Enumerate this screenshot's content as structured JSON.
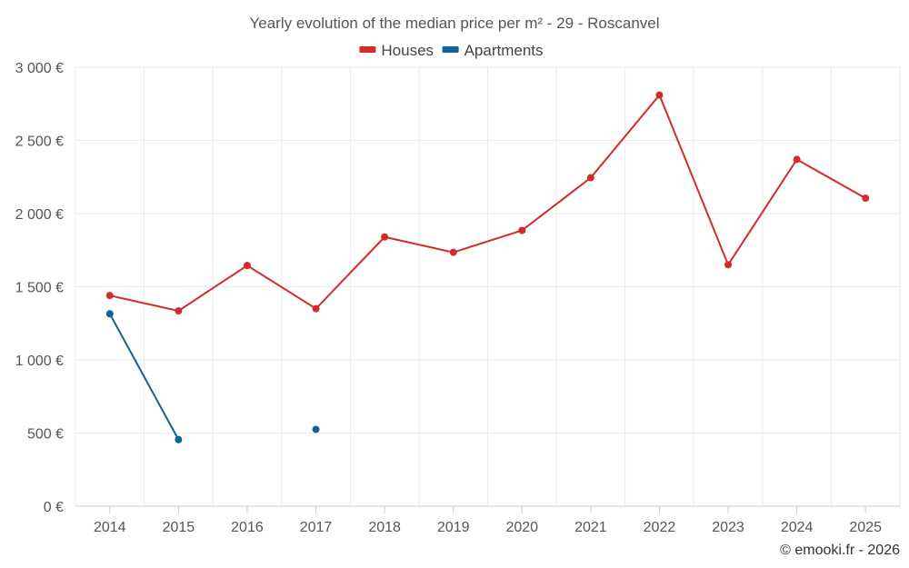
{
  "chart_data": {
    "type": "line",
    "title": "Yearly evolution of the median price per m² - 29 - Roscanvel",
    "x": [
      "2014",
      "2015",
      "2016",
      "2017",
      "2018",
      "2019",
      "2020",
      "2021",
      "2022",
      "2023",
      "2024",
      "2025"
    ],
    "ylim": [
      0,
      3000
    ],
    "yticks": [
      0,
      500,
      1000,
      1500,
      2000,
      2500,
      3000
    ],
    "ytick_labels": [
      "0 €",
      "500 €",
      "1 000 €",
      "1 500 €",
      "2 000 €",
      "2 500 €",
      "3 000 €"
    ],
    "grid": true,
    "legend_position": "top-center",
    "series": [
      {
        "name": "Houses",
        "color": "#d42a2a",
        "values": [
          1440,
          1335,
          1645,
          1350,
          1840,
          1735,
          1885,
          2245,
          2810,
          1650,
          2370,
          2105
        ]
      },
      {
        "name": "Apartments",
        "color": "#0e6494",
        "values": [
          1315,
          455,
          null,
          525,
          null,
          null,
          null,
          null,
          null,
          null,
          null,
          null
        ]
      }
    ]
  },
  "credit": "© emooki.fr - 2026"
}
